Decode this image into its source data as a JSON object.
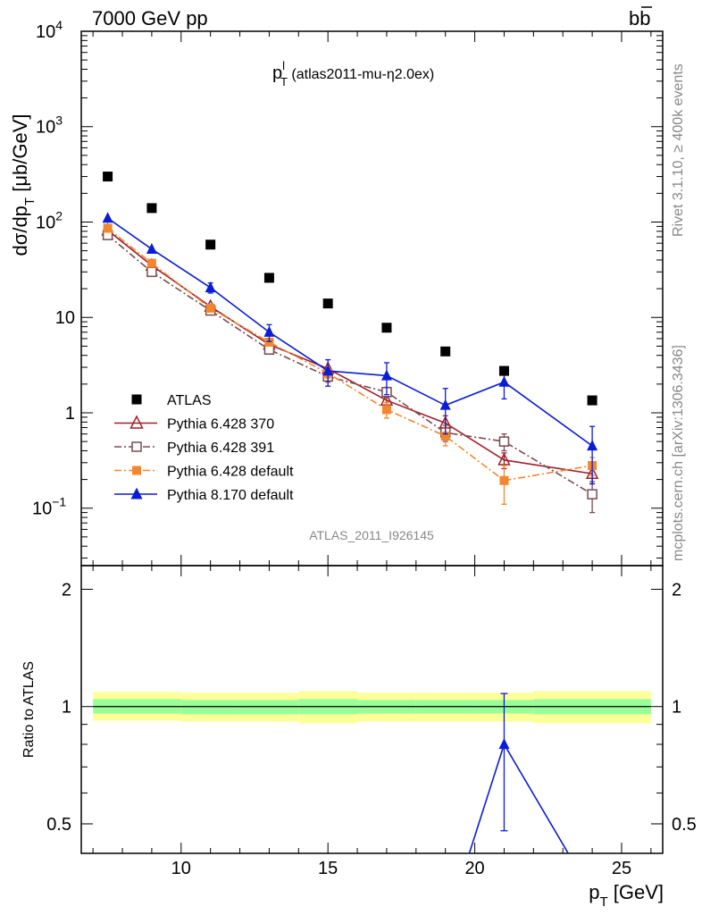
{
  "header": {
    "left": "7000 GeV pp",
    "right_main": "b",
    "right_bar": "b"
  },
  "side_text": {
    "rivet": "Rivet 3.1.10, ≥ 400k events",
    "mcplots": "mcplots.cern.ch [arXiv:1306.3436]"
  },
  "watermark": "ATLAS_2011_I926145",
  "plot_title": {
    "main": "p",
    "sup": "l",
    "sub": "T",
    "rest": " (atlas2011-mu-η2.0ex)"
  },
  "chart_data": [
    {
      "type": "scatter",
      "ylabel": "dσ/dp_T [μb/GeV]",
      "ylabel_parts": {
        "a": "dσ/dp",
        "sub": "T",
        "b": " [μb/GeV]"
      },
      "yscale": "log",
      "xlim": [
        6.6,
        26.4
      ],
      "ylim": [
        0.025,
        10000
      ],
      "y_ticks": [
        {
          "value": 10000,
          "base": "10",
          "exp": "4"
        },
        {
          "value": 1000,
          "base": "10",
          "exp": "3"
        },
        {
          "value": 100,
          "base": "10",
          "exp": "2"
        },
        {
          "value": 10,
          "base": "10",
          "exp": ""
        },
        {
          "value": 1,
          "base": "1",
          "exp": ""
        },
        {
          "value": 0.1,
          "base": "10",
          "exp": "−1"
        }
      ],
      "legend_position": "bottom-left",
      "series": [
        {
          "name": "ATLAS",
          "color": "#000000",
          "marker": "square-filled",
          "line": "none",
          "x": [
            7.5,
            9,
            11,
            13,
            15,
            17,
            19,
            21,
            24
          ],
          "y": [
            300,
            140,
            58,
            26,
            14,
            7.8,
            4.4,
            2.75,
            1.35
          ]
        },
        {
          "name": "Pythia 6.428 370",
          "color": "#a0202a",
          "marker": "triangle-open",
          "line": "solid",
          "x": [
            7.5,
            9,
            11,
            13,
            15,
            17,
            19,
            21,
            24
          ],
          "y": [
            82,
            35,
            13,
            5.2,
            2.9,
            1.35,
            0.78,
            0.32,
            0.23
          ],
          "err": [
            0,
            0,
            0,
            0,
            0,
            0.2,
            0.15,
            0.06,
            0.05
          ]
        },
        {
          "name": "Pythia 6.428 391",
          "color": "#7a4a54",
          "marker": "square-open",
          "line": "dashdot",
          "x": [
            7.5,
            9,
            11,
            13,
            15,
            17,
            19,
            21,
            24
          ],
          "y": [
            73,
            30,
            11.8,
            4.6,
            2.4,
            1.65,
            0.62,
            0.5,
            0.14
          ],
          "err": [
            0,
            0,
            0,
            0,
            0.3,
            0.2,
            0.12,
            0.1,
            0.05
          ]
        },
        {
          "name": "Pythia 6.428 default",
          "color": "#f4872e",
          "marker": "square-filled",
          "line": "dashdot",
          "x": [
            7.5,
            9,
            11,
            13,
            15,
            17,
            19,
            21,
            24
          ],
          "y": [
            86,
            37,
            12.5,
            5.5,
            2.6,
            1.08,
            0.57,
            0.195,
            0.28
          ],
          "err": [
            0,
            0,
            0,
            0,
            0.3,
            0.2,
            0.12,
            0.085,
            0.06
          ]
        },
        {
          "name": "Pythia 8.170 default",
          "color": "#0b1cd6",
          "marker": "triangle-filled",
          "line": "solid",
          "x": [
            7.5,
            9,
            11,
            13,
            15,
            17,
            19,
            21,
            24
          ],
          "y": [
            110,
            52,
            20.5,
            7,
            2.75,
            2.45,
            1.2,
            2.1,
            0.45
          ],
          "err": [
            0,
            0,
            2.5,
            1.4,
            0.85,
            0.9,
            0.6,
            0.7,
            0.27
          ]
        }
      ]
    },
    {
      "type": "line",
      "ylabel": "Ratio to ATLAS",
      "xlabel": "p_T [GeV]",
      "xlabel_parts": {
        "a": "p",
        "sub": "T",
        "b": " [GeV]"
      },
      "yscale": "log",
      "xlim": [
        6.6,
        26.4
      ],
      "ylim": [
        0.42,
        2.3
      ],
      "x_tick_labels": [
        "10",
        "15",
        "20",
        "25"
      ],
      "x_tick_values": [
        10,
        15,
        20,
        25
      ],
      "y_tick_labels": [
        "2",
        "1",
        "0.5"
      ],
      "y_tick_values": [
        2,
        1,
        0.5
      ],
      "reference_line": 1,
      "bands": {
        "outer_color": "#ffff99",
        "inner_color": "#99ff99",
        "x_edges": [
          7,
          8,
          10,
          12,
          14,
          16,
          18,
          20,
          22,
          26
        ],
        "outer": [
          [
            0.92,
            1.09
          ],
          [
            0.92,
            1.09
          ],
          [
            0.915,
            1.085
          ],
          [
            0.915,
            1.085
          ],
          [
            0.905,
            1.095
          ],
          [
            0.915,
            1.085
          ],
          [
            0.915,
            1.085
          ],
          [
            0.915,
            1.085
          ],
          [
            0.905,
            1.095
          ]
        ],
        "inner": [
          [
            0.96,
            1.045
          ],
          [
            0.96,
            1.045
          ],
          [
            0.955,
            1.04
          ],
          [
            0.955,
            1.04
          ],
          [
            0.955,
            1.045
          ],
          [
            0.96,
            1.04
          ],
          [
            0.96,
            1.04
          ],
          [
            0.96,
            1.04
          ],
          [
            0.955,
            1.045
          ]
        ]
      },
      "series": [
        {
          "name": "Pythia 8.170 default",
          "color": "#0b1cd6",
          "marker": "triangle-filled",
          "x": [
            19,
            21,
            24
          ],
          "y": [
            0.27,
            0.8,
            0.33
          ],
          "err_low": [
            0,
            0.32,
            0
          ],
          "err_high": [
            0,
            0.28,
            0
          ]
        }
      ]
    }
  ]
}
